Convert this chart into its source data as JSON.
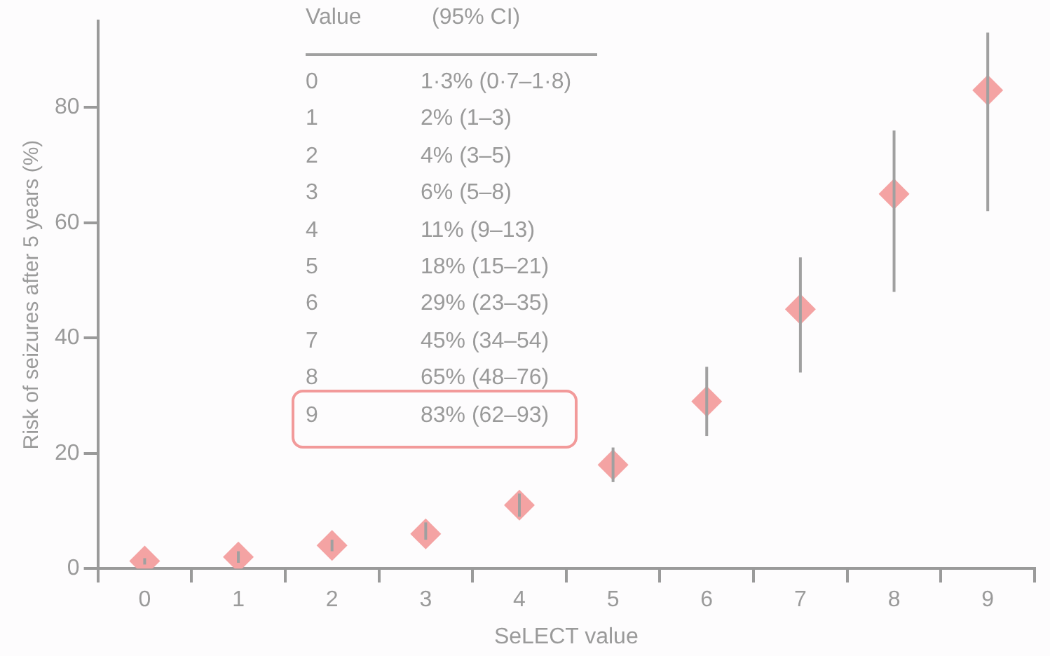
{
  "chart_data": {
    "type": "scatter",
    "xlabel": "SeLECT value",
    "ylabel": "Risk of seizures after 5 years (%)",
    "categories": [
      "0",
      "1",
      "2",
      "3",
      "4",
      "5",
      "6",
      "7",
      "8",
      "9"
    ],
    "values": [
      1.3,
      2,
      4,
      6,
      11,
      18,
      29,
      45,
      65,
      83
    ],
    "errors": [
      [
        0.7,
        1.8
      ],
      [
        1,
        3
      ],
      [
        3,
        5
      ],
      [
        5,
        8
      ],
      [
        9,
        13
      ],
      [
        15,
        21
      ],
      [
        23,
        35
      ],
      [
        34,
        54
      ],
      [
        48,
        76
      ],
      [
        62,
        93
      ]
    ],
    "annotations": [
      "Value",
      "(95% CI)",
      "1·3% (0·7–1·8)",
      "2% (1–3)",
      "4% (3–5)",
      "6% (5–8)",
      "11% (9–13)",
      "18% (15–21)",
      "29% (23–35)",
      "45% (34–54)",
      "65% (48–76)",
      "83% (62–93)"
    ],
    "color": "#f4a3a3",
    "marker": "diamond",
    "grid": false,
    "legend": false,
    "ylim": [
      0,
      95
    ],
    "yticks": [
      0,
      20,
      40,
      60,
      80
    ]
  }
}
